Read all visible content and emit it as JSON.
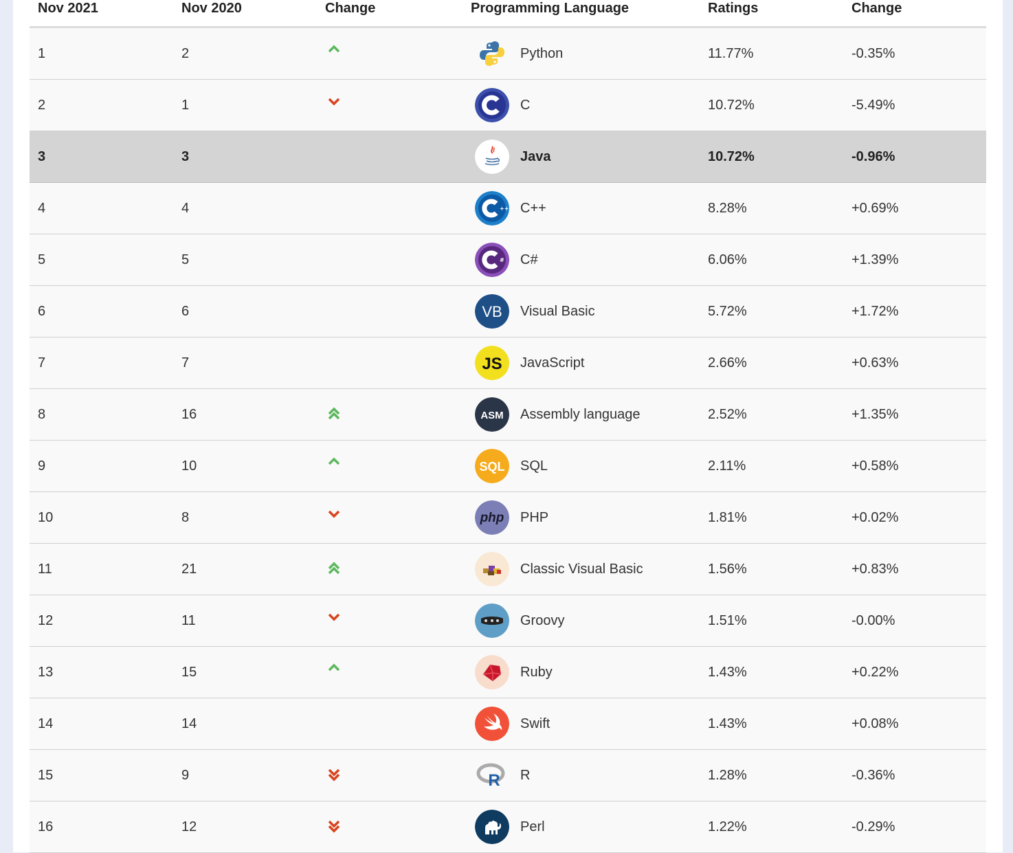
{
  "headers": {
    "rank_now": "Nov 2021",
    "rank_prev": "Nov 2020",
    "change": "Change",
    "language": "Programming Language",
    "ratings": "Ratings",
    "change_pct": "Change"
  },
  "rows": [
    {
      "now": "1",
      "prev": "2",
      "trend": "up",
      "lang": "Python",
      "rating": "11.77%",
      "delta": "-0.35%",
      "icon": "python-icon"
    },
    {
      "now": "2",
      "prev": "1",
      "trend": "down",
      "lang": "C",
      "rating": "10.72%",
      "delta": "-5.49%",
      "icon": "c-icon"
    },
    {
      "now": "3",
      "prev": "3",
      "trend": "none",
      "lang": "Java",
      "rating": "10.72%",
      "delta": "-0.96%",
      "icon": "java-icon"
    },
    {
      "now": "4",
      "prev": "4",
      "trend": "none",
      "lang": "C++",
      "rating": "8.28%",
      "delta": "+0.69%",
      "icon": "cpp-icon"
    },
    {
      "now": "5",
      "prev": "5",
      "trend": "none",
      "lang": "C#",
      "rating": "6.06%",
      "delta": "+1.39%",
      "icon": "csharp-icon"
    },
    {
      "now": "6",
      "prev": "6",
      "trend": "none",
      "lang": "Visual Basic",
      "rating": "5.72%",
      "delta": "+1.72%",
      "icon": "visual-basic-icon"
    },
    {
      "now": "7",
      "prev": "7",
      "trend": "none",
      "lang": "JavaScript",
      "rating": "2.66%",
      "delta": "+0.63%",
      "icon": "javascript-icon"
    },
    {
      "now": "8",
      "prev": "16",
      "trend": "up2",
      "lang": "Assembly language",
      "rating": "2.52%",
      "delta": "+1.35%",
      "icon": "assembly-icon"
    },
    {
      "now": "9",
      "prev": "10",
      "trend": "up",
      "lang": "SQL",
      "rating": "2.11%",
      "delta": "+0.58%",
      "icon": "sql-icon"
    },
    {
      "now": "10",
      "prev": "8",
      "trend": "down",
      "lang": "PHP",
      "rating": "1.81%",
      "delta": "+0.02%",
      "icon": "php-icon"
    },
    {
      "now": "11",
      "prev": "21",
      "trend": "up2",
      "lang": "Classic Visual Basic",
      "rating": "1.56%",
      "delta": "+0.83%",
      "icon": "classic-vb-icon"
    },
    {
      "now": "12",
      "prev": "11",
      "trend": "down",
      "lang": "Groovy",
      "rating": "1.51%",
      "delta": "-0.00%",
      "icon": "groovy-icon"
    },
    {
      "now": "13",
      "prev": "15",
      "trend": "up",
      "lang": "Ruby",
      "rating": "1.43%",
      "delta": "+0.22%",
      "icon": "ruby-icon"
    },
    {
      "now": "14",
      "prev": "14",
      "trend": "none",
      "lang": "Swift",
      "rating": "1.43%",
      "delta": "+0.08%",
      "icon": "swift-icon"
    },
    {
      "now": "15",
      "prev": "9",
      "trend": "down2",
      "lang": "R",
      "rating": "1.28%",
      "delta": "-0.36%",
      "icon": "r-icon"
    },
    {
      "now": "16",
      "prev": "12",
      "trend": "down2",
      "lang": "Perl",
      "rating": "1.22%",
      "delta": "-0.29%",
      "icon": "perl-icon"
    }
  ],
  "highlighted_row": 3,
  "logo_text": {
    "visual-basic-icon": "VB",
    "javascript-icon": "JS",
    "assembly-icon": "ASM",
    "sql-icon": "SQL",
    "php-icon": "php"
  },
  "colors": {
    "up": "#5cb85c",
    "down": "#d9431e",
    "highlight": "#d4d4d4",
    "page_bg": "#e8ecf6"
  }
}
